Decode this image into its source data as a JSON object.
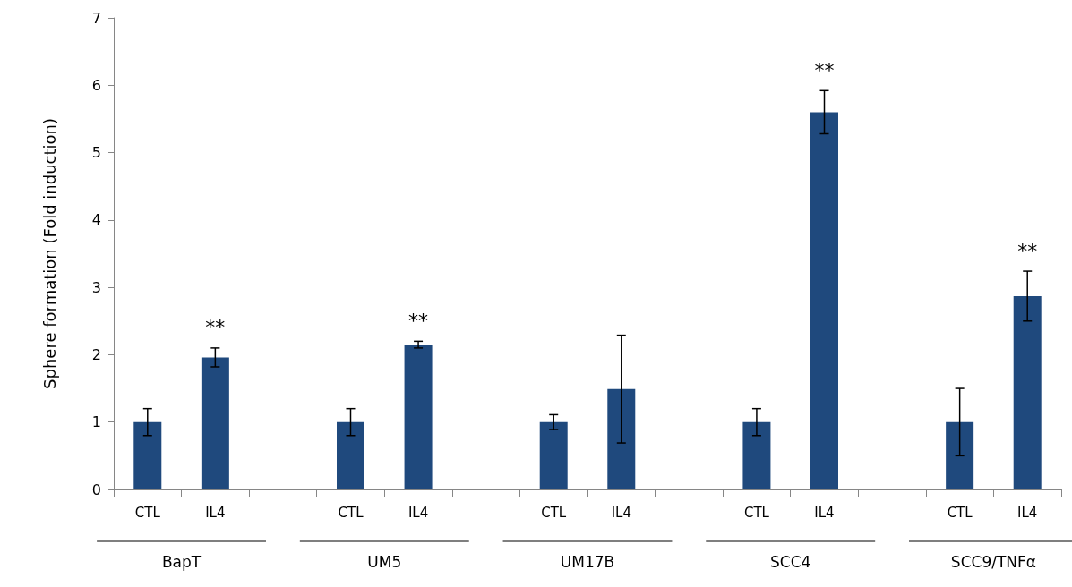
{
  "chart_data": {
    "type": "bar",
    "ylabel": "Sphere formation (Fold induction)",
    "categories": [
      "CTL",
      "IL4",
      null,
      "CTL",
      "IL4",
      null,
      "CTL",
      "IL4",
      null,
      "CTL",
      "IL4",
      null,
      "CTL",
      "IL4"
    ],
    "values": [
      1.0,
      1.96,
      null,
      1.0,
      2.15,
      null,
      1.0,
      1.49,
      null,
      1.0,
      5.6,
      null,
      1.0,
      2.87
    ],
    "errors": [
      0.2,
      0.14,
      null,
      0.2,
      0.05,
      null,
      0.11,
      0.8,
      null,
      0.2,
      0.32,
      null,
      0.5,
      0.37
    ],
    "value_labels": [
      null,
      "**",
      null,
      null,
      "**",
      null,
      null,
      null,
      null,
      null,
      "**",
      null,
      null,
      "**"
    ],
    "color": "#1f497d",
    "annotations": [
      "BapT",
      "UM5",
      "UM17B",
      "SCC4",
      "SCC9/TNFα"
    ],
    "ylim": [
      0,
      7
    ],
    "yticks": [
      0,
      1,
      2,
      3,
      4,
      5,
      6,
      7
    ],
    "grid": false
  }
}
